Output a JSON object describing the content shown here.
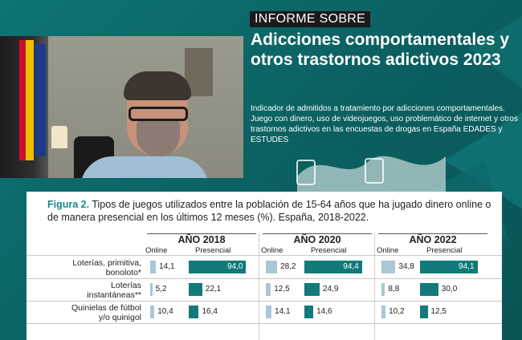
{
  "video": {},
  "header": {
    "tag": "INFORME SOBRE",
    "title": "Adicciones comportamentales y otros trastornos adictivos 2023",
    "description": "Indicador de admitidos a tratamiento por adicciones comportamentales. Juego con dinero, uso de videojuegos, uso problemático de internet y otros trastornos adictivos en las encuestas de drogas en España EDADES y ESTUDES"
  },
  "figure": {
    "label": "Figura 2.",
    "title": " Tipos de juegos utilizados entre la población de 15-64 años que ha jugado dinero online o de manera presencial en los últimos 12 meses (%). España, 2018-2022.",
    "years": [
      "AÑO 2018",
      "AÑO 2020",
      "AÑO 2022"
    ],
    "sub_online": "Online",
    "sub_presencial": "Presencial"
  },
  "chart_data": {
    "type": "bar",
    "title": "Tipos de juegos utilizados entre la población de 15-64 años que ha jugado dinero online o de manera presencial en los últimos 12 meses (%). España, 2018-2022.",
    "categories": [
      "Loterías, primitiva, bonoloto*",
      "Loterías instantáneas**",
      "Quinielas de fútbol y/o quinigol"
    ],
    "groups": [
      "AÑO 2018",
      "AÑO 2020",
      "AÑO 2022"
    ],
    "series": [
      {
        "name": "Online",
        "values": {
          "AÑO 2018": [
            14.1,
            5.2,
            10.4
          ],
          "AÑO 2020": [
            28.2,
            12.5,
            14.1
          ],
          "AÑO 2022": [
            34.8,
            8.8,
            10.2
          ]
        }
      },
      {
        "name": "Presencial",
        "values": {
          "AÑO 2018": [
            94.0,
            22.1,
            16.4
          ],
          "AÑO 2020": [
            94.4,
            24.9,
            14.6
          ],
          "AÑO 2022": [
            94.1,
            30.0,
            12.5
          ]
        }
      }
    ],
    "value_labels": {
      "Online": {
        "AÑO 2018": [
          "14,1",
          "5,2",
          "10,4"
        ],
        "AÑO 2020": [
          "28,2",
          "12,5",
          "14,1"
        ],
        "AÑO 2022": [
          "34,8",
          "8,8",
          "10,2"
        ]
      },
      "Presencial": {
        "AÑO 2018": [
          "94,0",
          "22,1",
          "16,4"
        ],
        "AÑO 2020": [
          "94,4",
          "24,9",
          "14,6"
        ],
        "AÑO 2022": [
          "94,1",
          "30,0",
          "12,5"
        ]
      }
    },
    "ylim": [
      0,
      100
    ],
    "colors": {
      "Online": "#a9c7d6",
      "Presencial": "#127a7a"
    }
  },
  "row_labels": [
    [
      "Loterías, primitiva,",
      "bonoloto*"
    ],
    [
      "Loterías",
      "instantáneas**"
    ],
    [
      "Quinielas de fútbol",
      "y/o quinigol"
    ]
  ]
}
